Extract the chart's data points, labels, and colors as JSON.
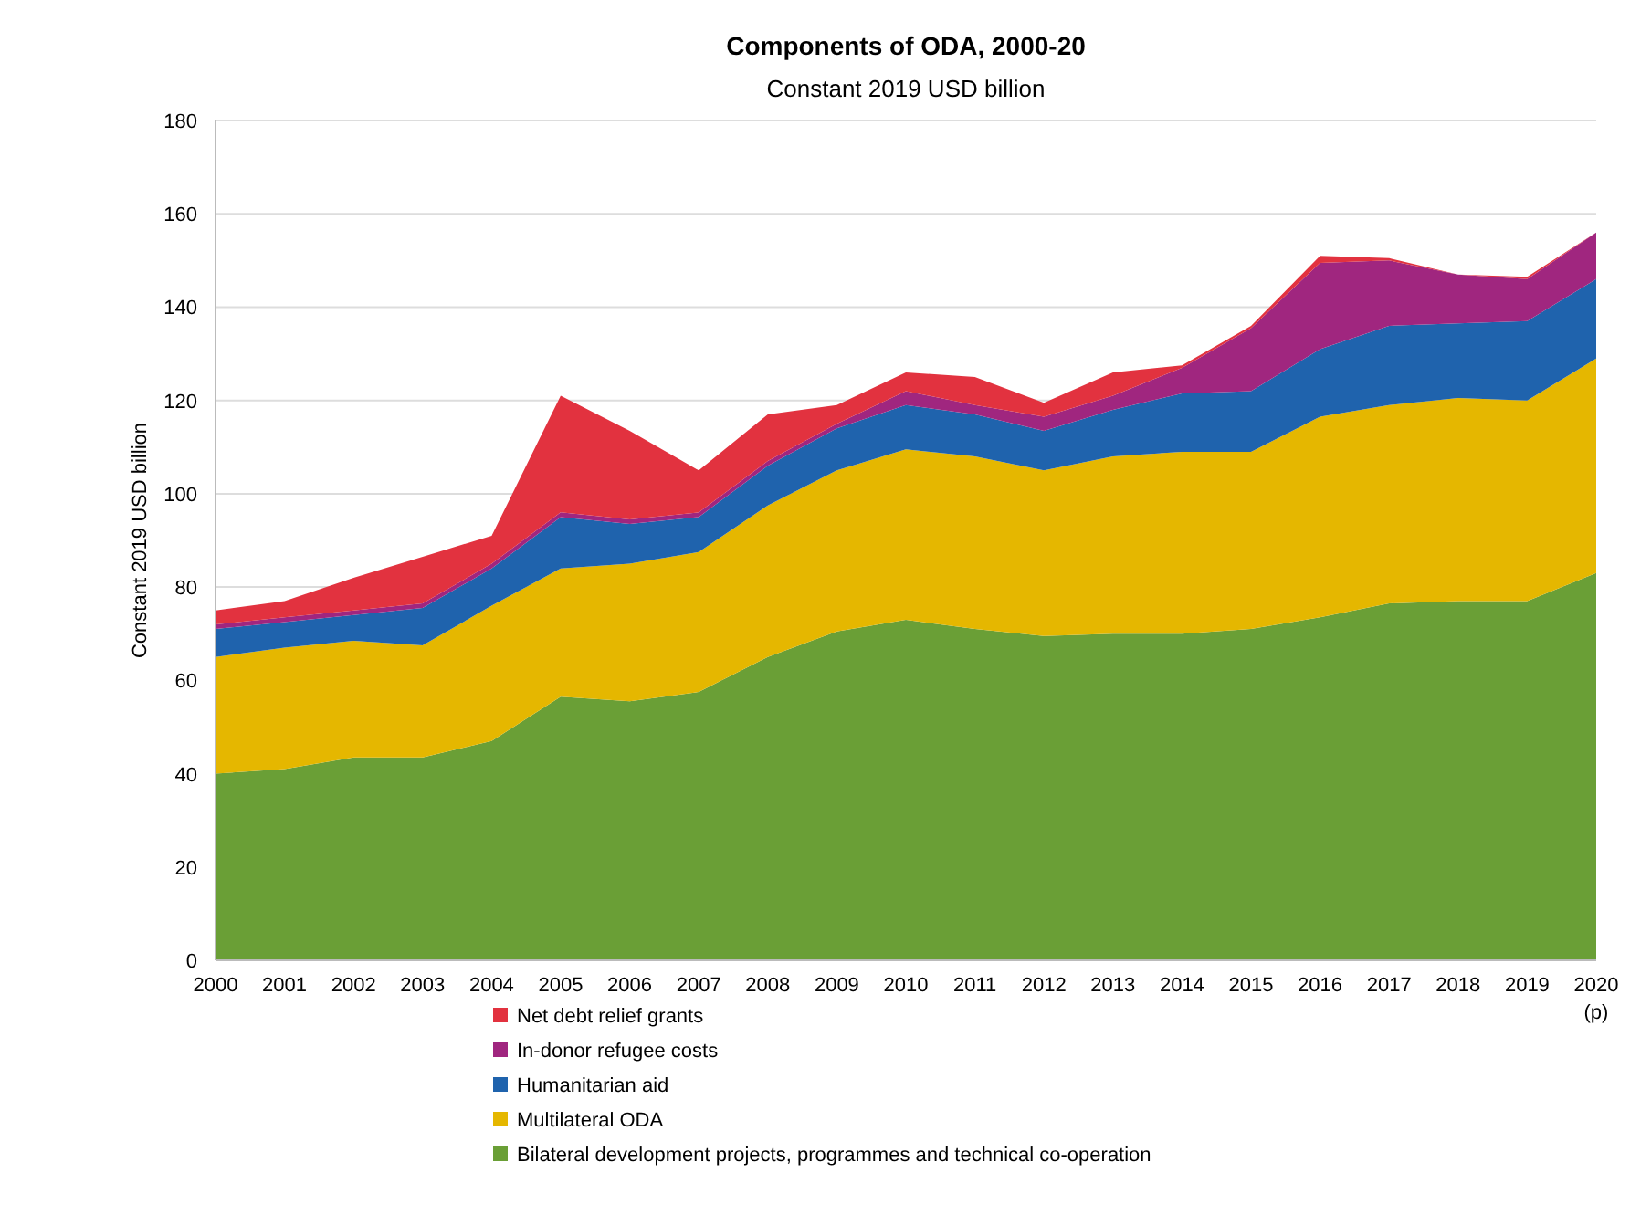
{
  "chart_data": {
    "type": "area",
    "stacked": true,
    "title": "Components of ODA, 2000-20",
    "subtitle": "Constant 2019 USD billion",
    "ylabel": "Constant 2019 USD billion",
    "categories": [
      "2000",
      "2001",
      "2002",
      "2003",
      "2004",
      "2005",
      "2006",
      "2007",
      "2008",
      "2009",
      "2010",
      "2011",
      "2012",
      "2013",
      "2014",
      "2015",
      "2016",
      "2017",
      "2018",
      "2019",
      "2020\n(p)"
    ],
    "series": [
      {
        "name": "Bilateral development projects, programmes and technical co-operation",
        "color": "#6a9f36",
        "values": [
          40,
          41,
          43.5,
          43.5,
          47,
          56.5,
          55.5,
          57.5,
          65,
          70.5,
          73,
          71,
          69.5,
          70,
          70,
          71,
          73.5,
          76.5,
          77,
          77,
          83
        ]
      },
      {
        "name": "Multilateral ODA",
        "color": "#e5b700",
        "values": [
          25,
          26,
          25,
          24,
          29,
          27.5,
          29.5,
          30,
          32.5,
          34.5,
          36.5,
          37,
          35.5,
          38,
          39,
          38,
          43,
          42.5,
          43.5,
          43,
          46
        ]
      },
      {
        "name": "Humanitarian aid",
        "color": "#1f63ad",
        "values": [
          6,
          5.5,
          5.5,
          8,
          8,
          11,
          8.5,
          7.5,
          8.5,
          9,
          9.5,
          9,
          8.5,
          10,
          12.5,
          13,
          14.5,
          17,
          16,
          17,
          17
        ]
      },
      {
        "name": "In-donor refugee costs",
        "color": "#a0267f",
        "values": [
          1,
          1,
          1,
          1,
          1,
          1,
          1,
          1,
          1,
          1,
          3,
          2,
          3,
          3,
          5.5,
          13.5,
          18.5,
          14,
          10.5,
          9,
          10
        ]
      },
      {
        "name": "Net debt relief grants",
        "color": "#e2323f",
        "values": [
          3,
          3.5,
          7,
          10,
          6,
          25,
          19,
          9,
          10,
          4,
          4,
          6,
          3,
          5,
          0.5,
          0.5,
          1.5,
          0.5,
          0,
          0.5,
          0
        ]
      }
    ],
    "ylim": [
      0,
      180
    ],
    "yticks": [
      0,
      20,
      40,
      60,
      80,
      100,
      120,
      140,
      160,
      180
    ],
    "grid": "y",
    "legend": "bottom"
  }
}
